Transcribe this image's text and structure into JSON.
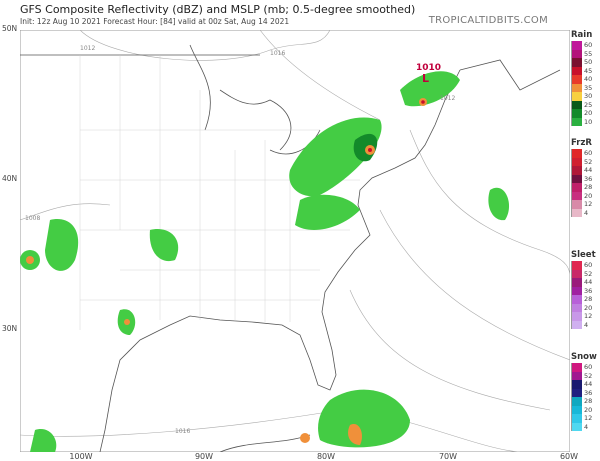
{
  "header": {
    "title": "GFS Composite Reflectivity (dBZ) and MSLP (mb; 0.5-degree smoothed)",
    "subtitle": "Init: 12z Aug 10 2021   Forecast Hour: [84]   valid at 00z Sat, Aug 14 2021",
    "brand": "TROPICALTIDBITS.COM"
  },
  "axes": {
    "lat": [
      "50N",
      "40N",
      "30N"
    ],
    "lon": [
      "100W",
      "90W",
      "80W",
      "70W",
      "60W"
    ]
  },
  "low": {
    "pressure": "1010",
    "symbol": "L",
    "color": "#c0003c"
  },
  "isobar_labels": [
    "1012",
    "1016",
    "1008",
    "1012",
    "1016"
  ],
  "legend": [
    {
      "title": "Rain",
      "labels": [
        "60",
        "55",
        "50",
        "45",
        "40",
        "35",
        "30",
        "25",
        "20",
        "10"
      ],
      "colors": [
        "#c0189a",
        "#b3127a",
        "#7a1030",
        "#c8102a",
        "#e83a2a",
        "#f0903a",
        "#f8d040",
        "#0a5a1a",
        "#138a2a",
        "#2ab040",
        "#44cc44",
        "#7ae860",
        "#ffffff"
      ]
    },
    {
      "title": "FrzR",
      "labels": [
        "60",
        "52",
        "44",
        "36",
        "28",
        "20",
        "12",
        "4"
      ],
      "colors": [
        "#e02828",
        "#d02030",
        "#b01838",
        "#701040",
        "#c0206a",
        "#c83080",
        "#d88aa8",
        "#e8b8c8",
        "#ffffff"
      ]
    },
    {
      "title": "Sleet",
      "labels": [
        "60",
        "52",
        "44",
        "36",
        "28",
        "20",
        "12",
        "4"
      ],
      "colors": [
        "#e02850",
        "#c82868",
        "#9a1a7a",
        "#a020a0",
        "#b860d8",
        "#c080e0",
        "#c898e8",
        "#d0b0f0",
        "#ffffff"
      ]
    },
    {
      "title": "Snow",
      "labels": [
        "60",
        "52",
        "44",
        "36",
        "28",
        "20",
        "12",
        "4"
      ],
      "colors": [
        "#d01880",
        "#a01890",
        "#1a1a70",
        "#202080",
        "#10a8c0",
        "#18b8d8",
        "#30c8e8",
        "#50d8f0",
        "#ffffff"
      ]
    }
  ]
}
